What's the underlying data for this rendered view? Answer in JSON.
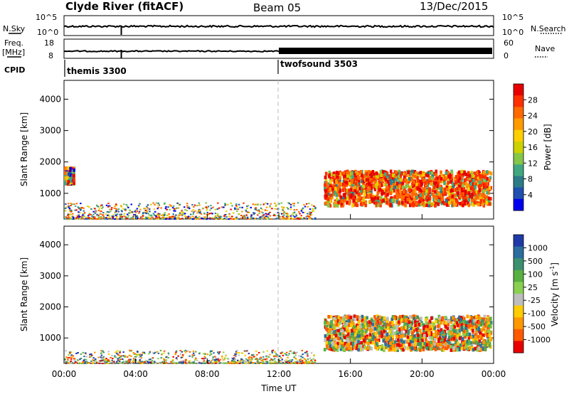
{
  "header": {
    "station": "Clyde River (fitACF)",
    "beam": "Beam 05",
    "date": "13/Dec/2015"
  },
  "strip_panels": {
    "nsky_label": "N.Sky",
    "nsearch_label": "N.Search",
    "nsky_ticks": [
      "10^5",
      "10^0"
    ],
    "nsearch_ticks": [
      "10^5",
      "10^0"
    ],
    "freq_label": "Freq.",
    "freq_unit": "[MHz]",
    "freq_ticks": [
      "18",
      "8"
    ],
    "nave_label": "Nave",
    "nave_ticks": [
      "60",
      "0"
    ],
    "cpid_label": "CPID",
    "cpid_modes": [
      {
        "name": "themis 3300",
        "start_hour": 0
      },
      {
        "name": "twofsound 3503",
        "start_hour": 12
      }
    ]
  },
  "chart_data": [
    {
      "type": "heatmap",
      "title": "",
      "variable": "Power",
      "ylabel": "Slant Range [km]",
      "xlabel": "",
      "xlim": [
        0,
        24
      ],
      "ylim": [
        180,
        4600
      ],
      "yticks": [
        1000,
        2000,
        3000,
        4000
      ],
      "colorbar_label": "Power [dB]",
      "colorbar_ticks": [
        "28",
        "24",
        "20",
        "16",
        "12",
        "8",
        "4"
      ],
      "colorbar_colors": [
        "#e80000",
        "#ff3000",
        "#ff6a00",
        "#ff9a00",
        "#ffcf00",
        "#cbd200",
        "#86c648",
        "#40a880",
        "#2c7c88",
        "#1f4fb0",
        "#0000ee"
      ],
      "scatter_regions": [
        {
          "t_start": 14.5,
          "t_end": 23.8,
          "r_start": 600,
          "r_end": 1700,
          "level": "high"
        },
        {
          "t_start": 0,
          "t_end": 14,
          "r_start": 180,
          "r_end": 700,
          "level": "low"
        },
        {
          "t_start": 0,
          "t_end": 0.5,
          "r_start": 1300,
          "r_end": 1800,
          "level": "mid"
        }
      ]
    },
    {
      "type": "heatmap",
      "title": "",
      "variable": "Velocity",
      "ylabel": "Slant Range [km]",
      "xlabel": "Time UT",
      "xlim": [
        0,
        24
      ],
      "ylim": [
        180,
        4600
      ],
      "yticks": [
        1000,
        2000,
        3000,
        4000
      ],
      "xticks": [
        "00:00",
        "04:00",
        "08:00",
        "12:00",
        "16:00",
        "20:00",
        "00:00"
      ],
      "colorbar_label": "Velocity [m s",
      "colorbar_unit_sup": "-1",
      "colorbar_ticks": [
        "1000",
        "500",
        "100",
        "25",
        "-25",
        "-100",
        "-500",
        "-1000"
      ],
      "colorbar_colors": [
        "#1f3aa8",
        "#2a6ea0",
        "#3c9070",
        "#58b040",
        "#8ad050",
        "#bdbdbd",
        "#ffcc00",
        "#ff9800",
        "#ff5a00",
        "#e80000"
      ],
      "scatter_regions": [
        {
          "t_start": 14.5,
          "t_end": 23.8,
          "r_start": 600,
          "r_end": 1700,
          "level": "mixed"
        },
        {
          "t_start": 0,
          "t_end": 14,
          "r_start": 180,
          "r_end": 600,
          "level": "low"
        }
      ]
    }
  ]
}
